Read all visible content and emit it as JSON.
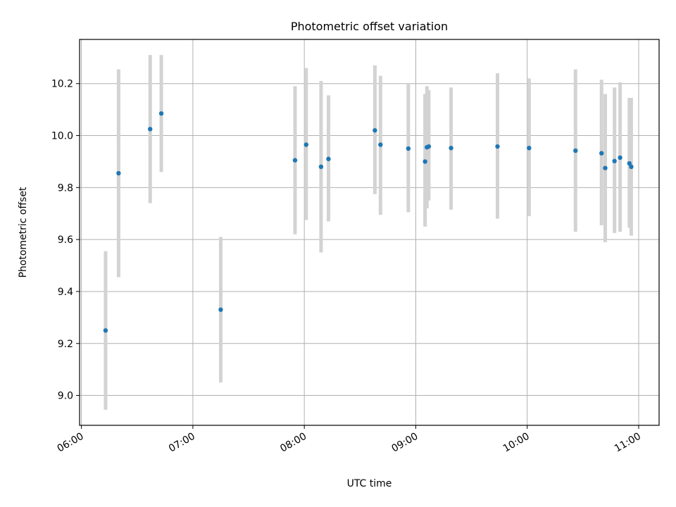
{
  "chart_data": {
    "type": "scatter",
    "title": "Photometric offset variation",
    "xlabel": "UTC time",
    "ylabel": "Photometric offset",
    "x_tick_labels": [
      "06:00",
      "07:00",
      "08:00",
      "09:00",
      "10:00",
      "11:00"
    ],
    "y_tick_labels": [
      "9.0",
      "9.2",
      "9.4",
      "9.6",
      "9.8",
      "10.0",
      "10.2"
    ],
    "y_ticks": [
      9.0,
      9.2,
      9.4,
      9.6,
      9.8,
      10.0,
      10.2
    ],
    "xlim": [
      "05:59",
      "11:11"
    ],
    "ylim": [
      8.885,
      10.37
    ],
    "grid": true,
    "legend": "none",
    "colors": {
      "marker": "#1f77b4",
      "errorbar": "#d3d3d3",
      "grid": "#b0b0b0"
    },
    "series": [
      {
        "points": [
          {
            "x": "06:13",
            "y": 9.25,
            "ylo": 8.945,
            "yhi": 9.555
          },
          {
            "x": "06:20",
            "y": 9.855,
            "ylo": 9.455,
            "yhi": 10.255
          },
          {
            "x": "06:37",
            "y": 10.025,
            "ylo": 9.74,
            "yhi": 10.31
          },
          {
            "x": "06:43",
            "y": 10.085,
            "ylo": 9.86,
            "yhi": 10.31
          },
          {
            "x": "07:15",
            "y": 9.33,
            "ylo": 9.05,
            "yhi": 9.61
          },
          {
            "x": "07:55",
            "y": 9.905,
            "ylo": 9.62,
            "yhi": 10.19
          },
          {
            "x": "08:01",
            "y": 9.965,
            "ylo": 9.675,
            "yhi": 10.26
          },
          {
            "x": "08:09",
            "y": 9.88,
            "ylo": 9.55,
            "yhi": 10.21
          },
          {
            "x": "08:13",
            "y": 9.91,
            "ylo": 9.67,
            "yhi": 10.155
          },
          {
            "x": "08:38",
            "y": 10.02,
            "ylo": 9.775,
            "yhi": 10.27
          },
          {
            "x": "08:41",
            "y": 9.965,
            "ylo": 9.695,
            "yhi": 10.23
          },
          {
            "x": "08:56",
            "y": 9.95,
            "ylo": 9.705,
            "yhi": 10.2
          },
          {
            "x": "09:05",
            "y": 9.9,
            "ylo": 9.65,
            "yhi": 10.16
          },
          {
            "x": "09:06",
            "y": 9.955,
            "ylo": 9.72,
            "yhi": 10.19
          },
          {
            "x": "09:07",
            "y": 9.958,
            "ylo": 9.75,
            "yhi": 10.175
          },
          {
            "x": "09:19",
            "y": 9.952,
            "ylo": 9.715,
            "yhi": 10.185
          },
          {
            "x": "09:44",
            "y": 9.958,
            "ylo": 9.68,
            "yhi": 10.24
          },
          {
            "x": "10:01",
            "y": 9.952,
            "ylo": 9.69,
            "yhi": 10.22
          },
          {
            "x": "10:26",
            "y": 9.942,
            "ylo": 9.63,
            "yhi": 10.255
          },
          {
            "x": "10:40",
            "y": 9.932,
            "ylo": 9.655,
            "yhi": 10.215
          },
          {
            "x": "10:42",
            "y": 9.875,
            "ylo": 9.59,
            "yhi": 10.16
          },
          {
            "x": "10:47",
            "y": 9.902,
            "ylo": 9.625,
            "yhi": 10.185
          },
          {
            "x": "10:50",
            "y": 9.915,
            "ylo": 9.63,
            "yhi": 10.205
          },
          {
            "x": "10:55",
            "y": 9.893,
            "ylo": 9.645,
            "yhi": 10.145
          },
          {
            "x": "10:56",
            "y": 9.88,
            "ylo": 9.615,
            "yhi": 10.145
          }
        ]
      }
    ]
  }
}
